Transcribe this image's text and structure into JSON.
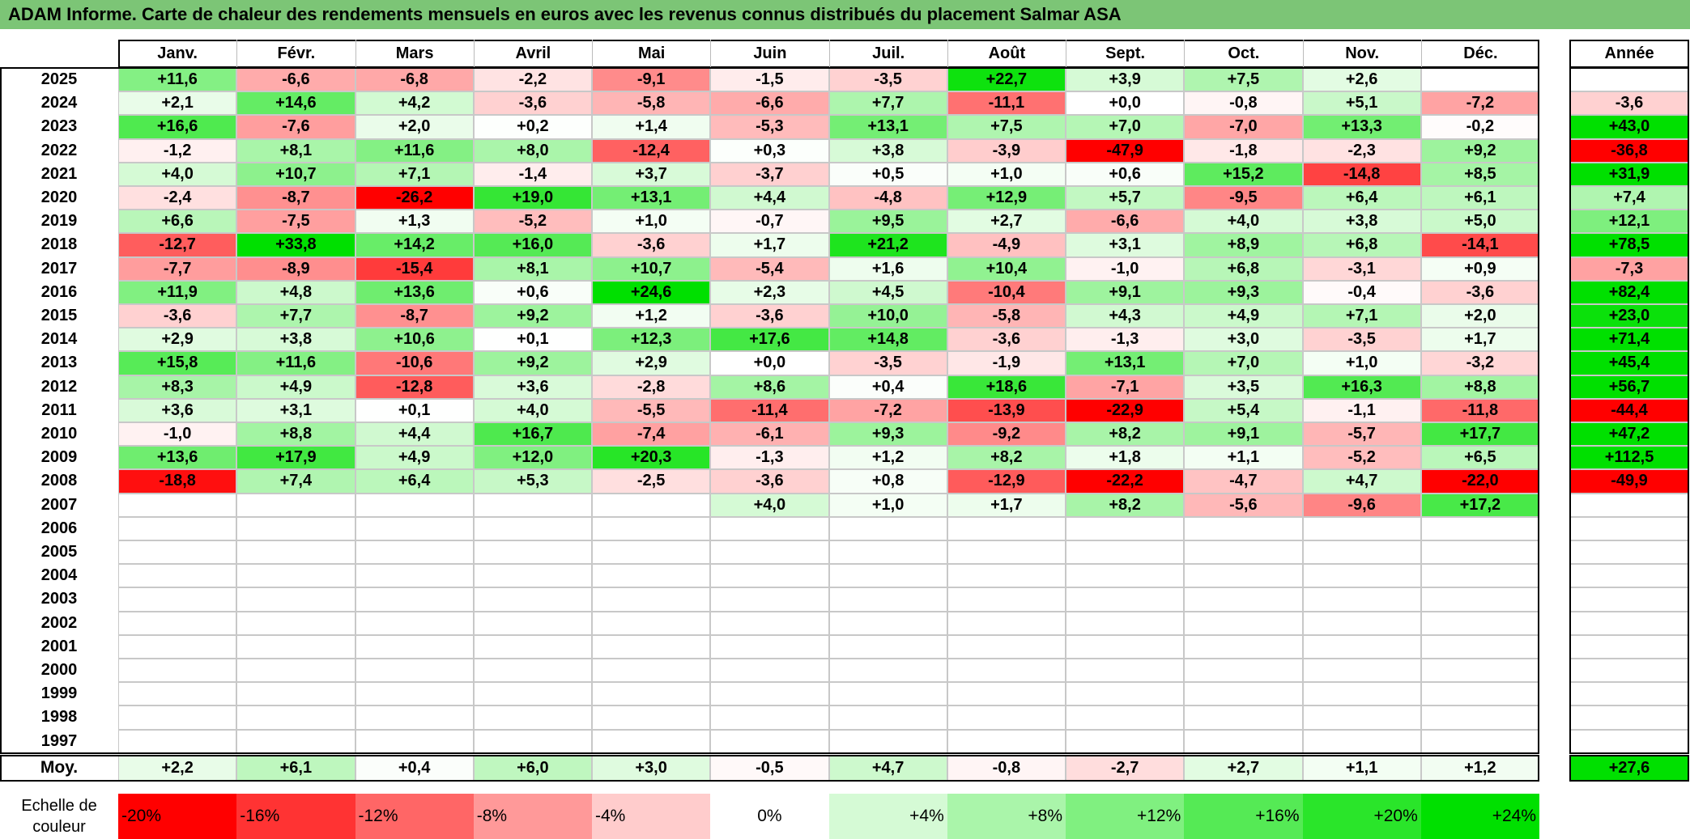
{
  "title": "ADAM Informe. Carte de chaleur des rendements mensuels en euros avec les revenus connus distribués du placement Salmar ASA",
  "table": {
    "months": [
      "Janv.",
      "Févr.",
      "Mars",
      "Avril",
      "Mai",
      "Juin",
      "Juil.",
      "Août",
      "Sept.",
      "Oct.",
      "Nov.",
      "Déc."
    ],
    "year_header": "Année",
    "rows": [
      {
        "year": "2025",
        "months": [
          "+11,6",
          "-6,6",
          "-6,8",
          "-2,2",
          "-9,1",
          "-1,5",
          "-3,5",
          "+22,7",
          "+3,9",
          "+7,5",
          "+2,6",
          null
        ],
        "year_total": null
      },
      {
        "year": "2024",
        "months": [
          "+2,1",
          "+14,6",
          "+4,2",
          "-3,6",
          "-5,8",
          "-6,6",
          "+7,7",
          "-11,1",
          "+0,0",
          "-0,8",
          "+5,1",
          "-7,2"
        ],
        "year_total": "-3,6"
      },
      {
        "year": "2023",
        "months": [
          "+16,6",
          "-7,6",
          "+2,0",
          "+0,2",
          "+1,4",
          "-5,3",
          "+13,1",
          "+7,5",
          "+7,0",
          "-7,0",
          "+13,3",
          "-0,2"
        ],
        "year_total": "+43,0"
      },
      {
        "year": "2022",
        "months": [
          "-1,2",
          "+8,1",
          "+11,6",
          "+8,0",
          "-12,4",
          "+0,3",
          "+3,8",
          "-3,9",
          "-47,9",
          "-1,8",
          "-2,3",
          "+9,2"
        ],
        "year_total": "-36,8"
      },
      {
        "year": "2021",
        "months": [
          "+4,0",
          "+10,7",
          "+7,1",
          "-1,4",
          "+3,7",
          "-3,7",
          "+0,5",
          "+1,0",
          "+0,6",
          "+15,2",
          "-14,8",
          "+8,5"
        ],
        "year_total": "+31,9"
      },
      {
        "year": "2020",
        "months": [
          "-2,4",
          "-8,7",
          "-26,2",
          "+19,0",
          "+13,1",
          "+4,4",
          "-4,8",
          "+12,9",
          "+5,7",
          "-9,5",
          "+6,4",
          "+6,1"
        ],
        "year_total": "+7,4"
      },
      {
        "year": "2019",
        "months": [
          "+6,6",
          "-7,5",
          "+1,3",
          "-5,2",
          "+1,0",
          "-0,7",
          "+9,5",
          "+2,7",
          "-6,6",
          "+4,0",
          "+3,8",
          "+5,0"
        ],
        "year_total": "+12,1"
      },
      {
        "year": "2018",
        "months": [
          "-12,7",
          "+33,8",
          "+14,2",
          "+16,0",
          "-3,6",
          "+1,7",
          "+21,2",
          "-4,9",
          "+3,1",
          "+8,9",
          "+6,8",
          "-14,1"
        ],
        "year_total": "+78,5"
      },
      {
        "year": "2017",
        "months": [
          "-7,7",
          "-8,9",
          "-15,4",
          "+8,1",
          "+10,7",
          "-5,4",
          "+1,6",
          "+10,4",
          "-1,0",
          "+6,8",
          "-3,1",
          "+0,9"
        ],
        "year_total": "-7,3"
      },
      {
        "year": "2016",
        "months": [
          "+11,9",
          "+4,8",
          "+13,6",
          "+0,6",
          "+24,6",
          "+2,3",
          "+4,5",
          "-10,4",
          "+9,1",
          "+9,3",
          "-0,4",
          "-3,6"
        ],
        "year_total": "+82,4"
      },
      {
        "year": "2015",
        "months": [
          "-3,6",
          "+7,7",
          "-8,7",
          "+9,2",
          "+1,2",
          "-3,6",
          "+10,0",
          "-5,8",
          "+4,3",
          "+4,9",
          "+7,1",
          "+2,0"
        ],
        "year_total": "+23,0"
      },
      {
        "year": "2014",
        "months": [
          "+2,9",
          "+3,8",
          "+10,6",
          "+0,1",
          "+12,3",
          "+17,6",
          "+14,8",
          "-3,6",
          "-1,3",
          "+3,0",
          "-3,5",
          "+1,7"
        ],
        "year_total": "+71,4"
      },
      {
        "year": "2013",
        "months": [
          "+15,8",
          "+11,6",
          "-10,6",
          "+9,2",
          "+2,9",
          "+0,0",
          "-3,5",
          "-1,9",
          "+13,1",
          "+7,0",
          "+1,0",
          "-3,2"
        ],
        "year_total": "+45,4"
      },
      {
        "year": "2012",
        "months": [
          "+8,3",
          "+4,9",
          "-12,8",
          "+3,6",
          "-2,8",
          "+8,6",
          "+0,4",
          "+18,6",
          "-7,1",
          "+3,5",
          "+16,3",
          "+8,8"
        ],
        "year_total": "+56,7"
      },
      {
        "year": "2011",
        "months": [
          "+3,6",
          "+3,1",
          "+0,1",
          "+4,0",
          "-5,5",
          "-11,4",
          "-7,2",
          "-13,9",
          "-22,9",
          "+5,4",
          "-1,1",
          "-11,8"
        ],
        "year_total": "-44,4"
      },
      {
        "year": "2010",
        "months": [
          "-1,0",
          "+8,8",
          "+4,4",
          "+16,7",
          "-7,4",
          "-6,1",
          "+9,3",
          "-9,2",
          "+8,2",
          "+9,1",
          "-5,7",
          "+17,7"
        ],
        "year_total": "+47,2"
      },
      {
        "year": "2009",
        "months": [
          "+13,6",
          "+17,9",
          "+4,9",
          "+12,0",
          "+20,3",
          "-1,3",
          "+1,2",
          "+8,2",
          "+1,8",
          "+1,1",
          "-5,2",
          "+6,5"
        ],
        "year_total": "+112,5"
      },
      {
        "year": "2008",
        "months": [
          "-18,8",
          "+7,4",
          "+6,4",
          "+5,3",
          "-2,5",
          "-3,6",
          "+0,8",
          "-12,9",
          "-22,2",
          "-4,7",
          "+4,7",
          "-22,0"
        ],
        "year_total": "-49,9"
      },
      {
        "year": "2007",
        "months": [
          null,
          null,
          null,
          null,
          null,
          "+4,0",
          "+1,0",
          "+1,7",
          "+8,2",
          "-5,6",
          "-9,6",
          "+17,2"
        ],
        "year_total": null
      },
      {
        "year": "2006",
        "months": [
          null,
          null,
          null,
          null,
          null,
          null,
          null,
          null,
          null,
          null,
          null,
          null
        ],
        "year_total": null
      },
      {
        "year": "2005",
        "months": [
          null,
          null,
          null,
          null,
          null,
          null,
          null,
          null,
          null,
          null,
          null,
          null
        ],
        "year_total": null
      },
      {
        "year": "2004",
        "months": [
          null,
          null,
          null,
          null,
          null,
          null,
          null,
          null,
          null,
          null,
          null,
          null
        ],
        "year_total": null
      },
      {
        "year": "2003",
        "months": [
          null,
          null,
          null,
          null,
          null,
          null,
          null,
          null,
          null,
          null,
          null,
          null
        ],
        "year_total": null
      },
      {
        "year": "2002",
        "months": [
          null,
          null,
          null,
          null,
          null,
          null,
          null,
          null,
          null,
          null,
          null,
          null
        ],
        "year_total": null
      },
      {
        "year": "2001",
        "months": [
          null,
          null,
          null,
          null,
          null,
          null,
          null,
          null,
          null,
          null,
          null,
          null
        ],
        "year_total": null
      },
      {
        "year": "2000",
        "months": [
          null,
          null,
          null,
          null,
          null,
          null,
          null,
          null,
          null,
          null,
          null,
          null
        ],
        "year_total": null
      },
      {
        "year": "1999",
        "months": [
          null,
          null,
          null,
          null,
          null,
          null,
          null,
          null,
          null,
          null,
          null,
          null
        ],
        "year_total": null
      },
      {
        "year": "1998",
        "months": [
          null,
          null,
          null,
          null,
          null,
          null,
          null,
          null,
          null,
          null,
          null,
          null
        ],
        "year_total": null
      },
      {
        "year": "1997",
        "months": [
          null,
          null,
          null,
          null,
          null,
          null,
          null,
          null,
          null,
          null,
          null,
          null
        ],
        "year_total": null
      }
    ],
    "average": {
      "label": "Moy.",
      "months": [
        "+2,2",
        "+6,1",
        "+0,4",
        "+6,0",
        "+3,0",
        "-0,5",
        "+4,7",
        "-0,8",
        "-2,7",
        "+2,7",
        "+1,1",
        "+1,2"
      ],
      "year_total": "+27,6"
    }
  },
  "scale": {
    "label": "Echelle de couleur",
    "steps": [
      "-20%",
      "-16%",
      "-12%",
      "-8%",
      "-4%",
      "0%",
      "+4%",
      "+8%",
      "+12%",
      "+16%",
      "+20%",
      "+24%"
    ]
  }
}
